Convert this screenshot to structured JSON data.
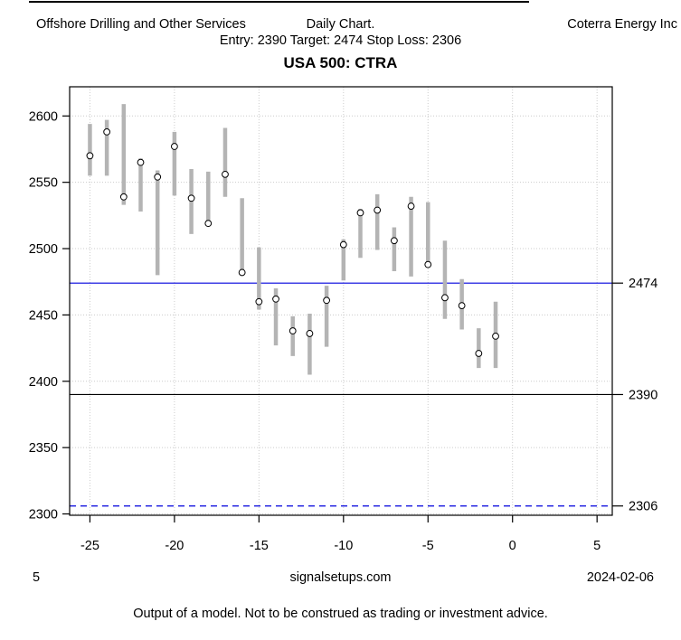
{
  "header": {
    "sector": "Offshore Drilling and Other Services",
    "chart_type": "Daily Chart.",
    "company": "Coterra Energy Inc",
    "setup_line": "Entry: 2390 Target: 2474 Stop Loss: 2306",
    "title": "USA 500: CTRA"
  },
  "footer": {
    "left_number": "5",
    "website": "signalsetups.com",
    "date": "2024-02-06",
    "disclaimer": "Output of a model. Not to be construed as trading or investment advice."
  },
  "chart_data": {
    "type": "hlc-bar",
    "title": "USA 500: CTRA",
    "xlabel": "",
    "ylabel": "",
    "xlim": [
      -26.2,
      5.9
    ],
    "ylim": [
      2299,
      2622
    ],
    "x_ticks": [
      -25,
      -20,
      -15,
      -10,
      -5,
      0,
      5
    ],
    "y_ticks": [
      2300,
      2350,
      2400,
      2450,
      2500,
      2550,
      2600
    ],
    "grid": true,
    "grid_color": "#cccccc",
    "bar_color": "#b4b4b4",
    "marker": "open-circle-at-close",
    "bars": [
      {
        "x": -25,
        "high": 2594,
        "low": 2555,
        "close": 2570
      },
      {
        "x": -24,
        "high": 2597,
        "low": 2555,
        "close": 2588
      },
      {
        "x": -23,
        "high": 2609,
        "low": 2533,
        "close": 2539
      },
      {
        "x": -22,
        "high": 2568,
        "low": 2528,
        "close": 2565
      },
      {
        "x": -21,
        "high": 2559,
        "low": 2480,
        "close": 2554
      },
      {
        "x": -20,
        "high": 2588,
        "low": 2540,
        "close": 2577
      },
      {
        "x": -19,
        "high": 2560,
        "low": 2511,
        "close": 2538
      },
      {
        "x": -18,
        "high": 2558,
        "low": 2517,
        "close": 2519
      },
      {
        "x": -17,
        "high": 2591,
        "low": 2539,
        "close": 2556
      },
      {
        "x": -16,
        "high": 2538,
        "low": 2481,
        "close": 2482
      },
      {
        "x": -15,
        "high": 2501,
        "low": 2454,
        "close": 2460
      },
      {
        "x": -14,
        "high": 2470,
        "low": 2427,
        "close": 2462
      },
      {
        "x": -13,
        "high": 2449,
        "low": 2419,
        "close": 2438
      },
      {
        "x": -12,
        "high": 2451,
        "low": 2405,
        "close": 2436
      },
      {
        "x": -11,
        "high": 2472,
        "low": 2426,
        "close": 2461
      },
      {
        "x": -10,
        "high": 2507,
        "low": 2476,
        "close": 2503
      },
      {
        "x": -9,
        "high": 2530,
        "low": 2493,
        "close": 2527
      },
      {
        "x": -8,
        "high": 2541,
        "low": 2499,
        "close": 2529
      },
      {
        "x": -7,
        "high": 2516,
        "low": 2483,
        "close": 2506
      },
      {
        "x": -6,
        "high": 2539,
        "low": 2479,
        "close": 2532
      },
      {
        "x": -5,
        "high": 2535,
        "low": 2486,
        "close": 2488
      },
      {
        "x": -4,
        "high": 2506,
        "low": 2447,
        "close": 2463
      },
      {
        "x": -3,
        "high": 2477,
        "low": 2439,
        "close": 2457
      },
      {
        "x": -2,
        "high": 2440,
        "low": 2410,
        "close": 2421
      },
      {
        "x": -1,
        "high": 2460,
        "low": 2410,
        "close": 2434
      }
    ],
    "reference_lines": [
      {
        "name": "target",
        "label": "2474",
        "value": 2474,
        "color": "#0000dd",
        "style": "solid"
      },
      {
        "name": "entry",
        "label": "2390",
        "value": 2390,
        "color": "#000000",
        "style": "solid"
      },
      {
        "name": "stop_loss",
        "label": "2306",
        "value": 2306,
        "color": "#0000dd",
        "style": "dashed"
      }
    ],
    "legend": null
  }
}
